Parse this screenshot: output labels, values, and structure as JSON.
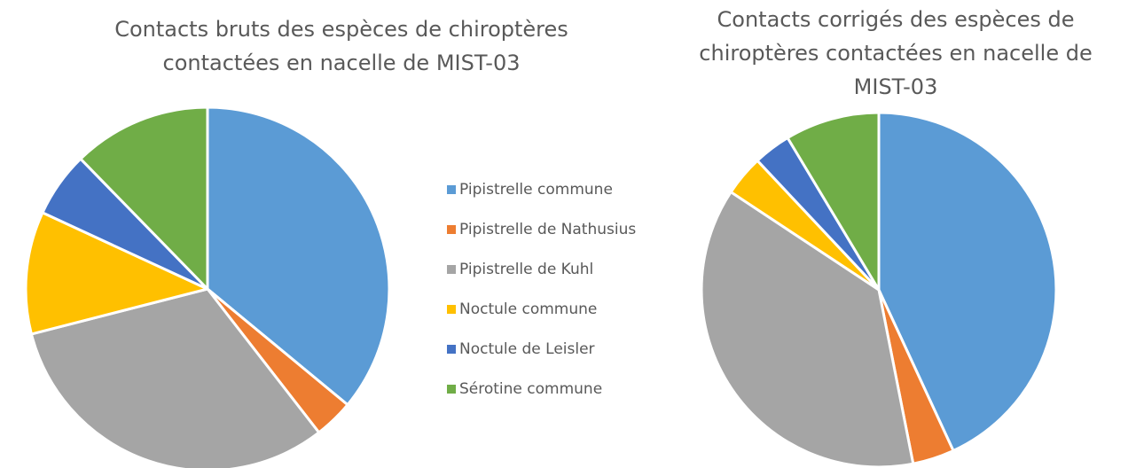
{
  "chart_data": [
    {
      "type": "pie",
      "title": "Contacts bruts des espèces de chiroptères contactées en nacelle de MIST-03",
      "categories": [
        "Pipistrelle commune",
        "Pipistrelle de Nathusius",
        "Pipistrelle de Kuhl",
        "Noctule commune",
        "Noctule de Leisler",
        "Sérotine commune"
      ],
      "values": [
        36,
        3.5,
        31.5,
        10.9,
        5.8,
        12.3
      ],
      "colors": [
        "#5b9bd5",
        "#ed7d31",
        "#a5a5a5",
        "#ffc000",
        "#4472c4",
        "#70ad47"
      ]
    },
    {
      "type": "pie",
      "title": "Contacts corrigés des espèces de chiroptères contactées en nacelle de MIST-03",
      "values": [
        43.1,
        3.8,
        37.4,
        3.7,
        3.4,
        8.6
      ],
      "colors": [
        "#5b9bd5",
        "#ed7d31",
        "#a5a5a5",
        "#ffc000",
        "#4472c4",
        "#70ad47"
      ]
    }
  ]
}
